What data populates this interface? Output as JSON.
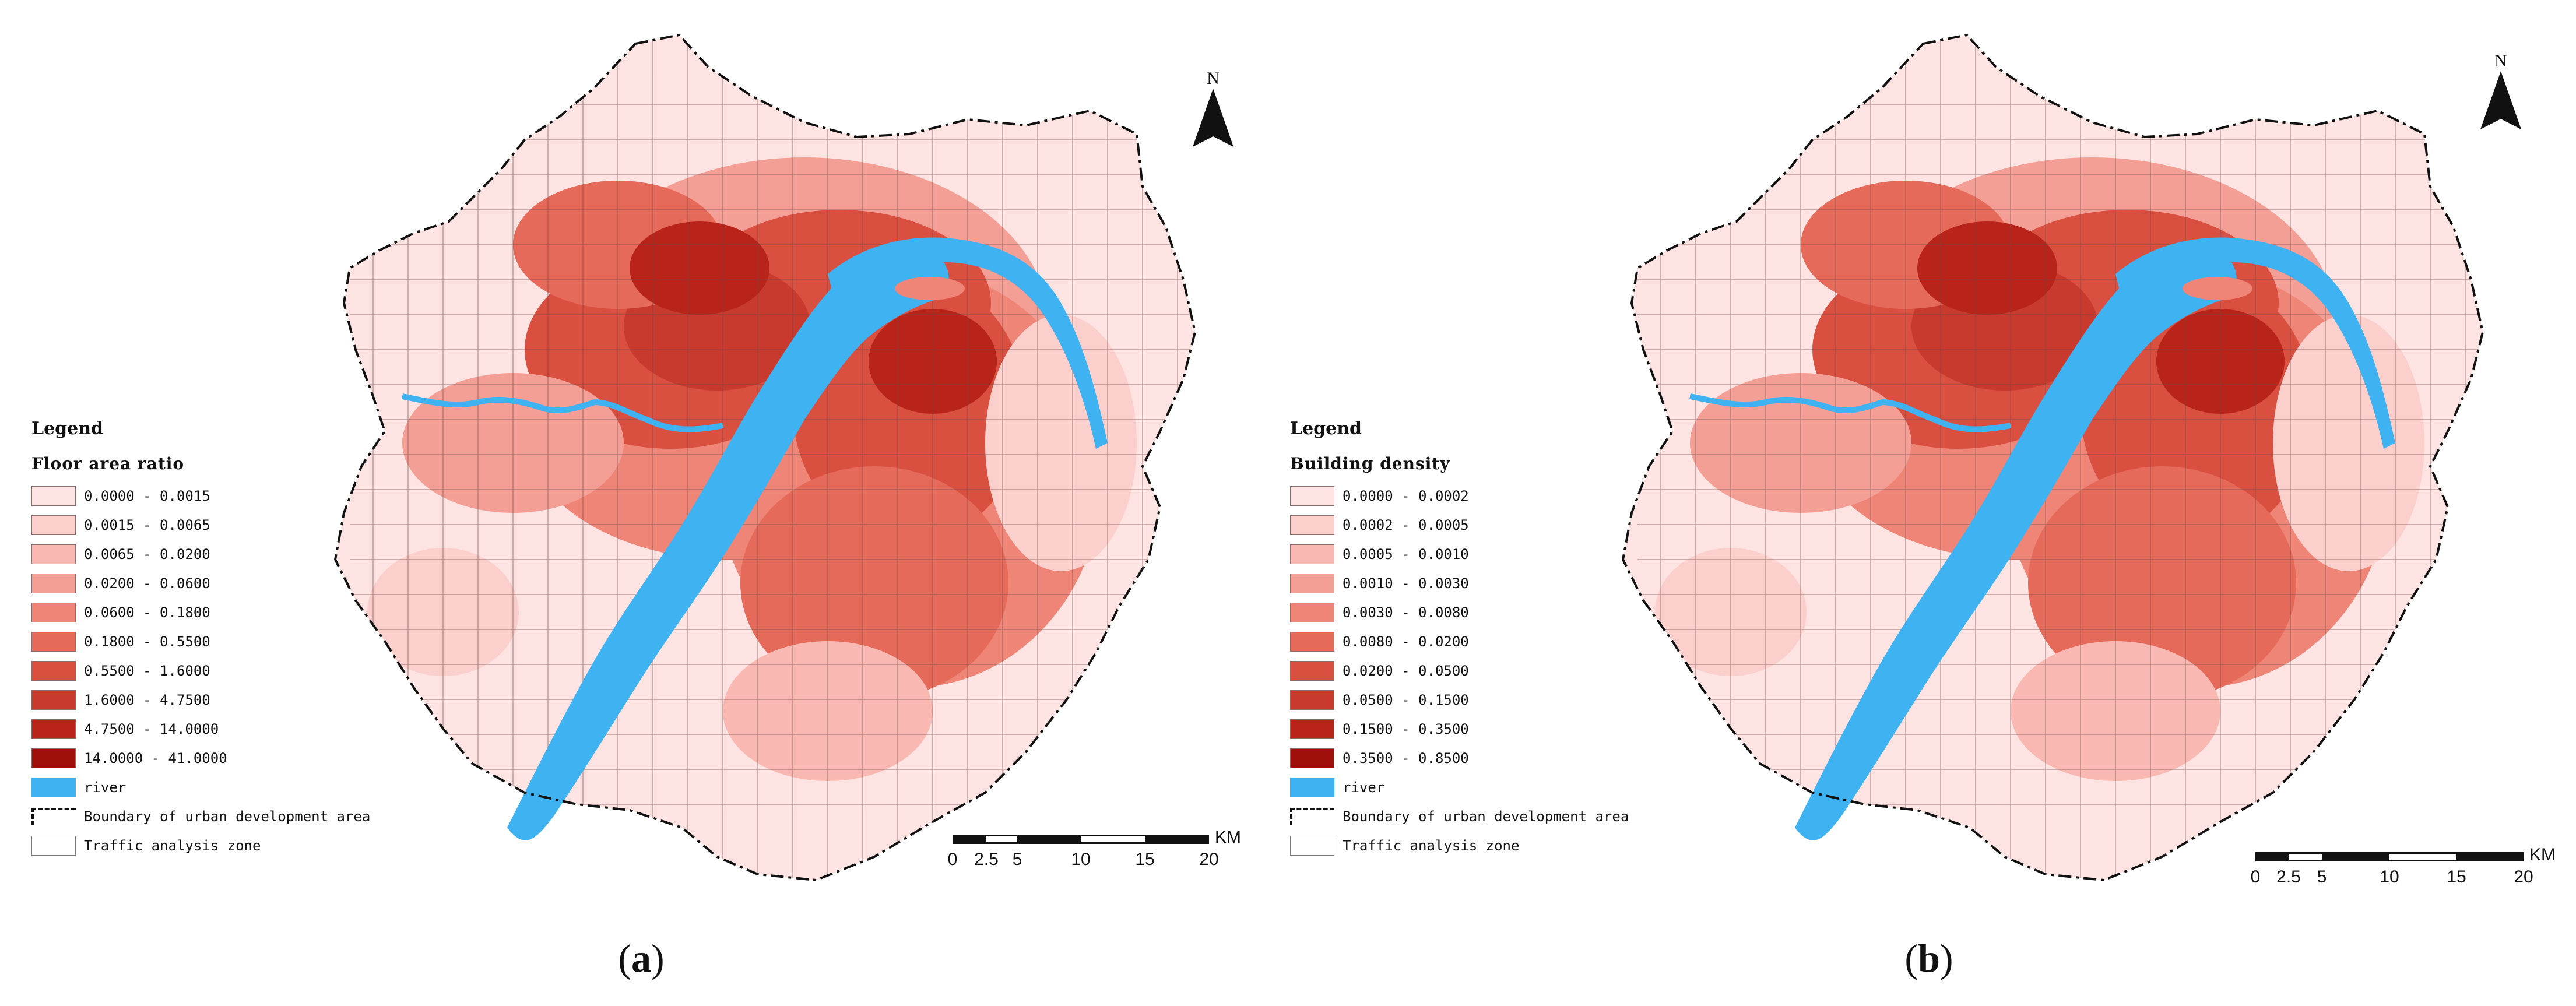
{
  "figure": {
    "colors": {
      "class_1": "#fde3e1",
      "class_2": "#fbcfcb",
      "class_3": "#f9b8b1",
      "class_4": "#f49f96",
      "class_5": "#ee8577",
      "class_6": "#e66a5a",
      "class_7": "#d94f40",
      "class_8": "#c93a2e",
      "class_9": "#b82419",
      "class_10": "#a0100a",
      "river": "#3fb2f2",
      "zone_line": "#6f4a4a"
    },
    "panels": [
      {
        "caption_open": "(",
        "caption_letter": "a",
        "caption_close": ")",
        "legend_title": "Legend",
        "legend_subtitle": "Floor area ratio",
        "classes": [
          "0.0000 - 0.0015",
          "0.0015 - 0.0065",
          "0.0065 - 0.0200",
          "0.0200 - 0.0600",
          "0.0600 - 0.1800",
          "0.1800 - 0.5500",
          "0.5500 - 1.6000",
          "1.6000 - 4.7500",
          "4.7500 - 14.0000",
          "14.0000 - 41.0000"
        ],
        "river_label": "river",
        "boundary_label": "Boundary of urban development area",
        "zone_label": "Traffic analysis zone",
        "north_label": "N",
        "scale_unit": "KM",
        "scale_ticks": [
          "0",
          "2.5",
          "5",
          "10",
          "15",
          "20"
        ]
      },
      {
        "caption_open": "(",
        "caption_letter": "b",
        "caption_close": ")",
        "legend_title": "Legend",
        "legend_subtitle": "Building density",
        "classes": [
          "0.0000 - 0.0002",
          "0.0002 - 0.0005",
          "0.0005 - 0.0010",
          "0.0010 - 0.0030",
          "0.0030 - 0.0080",
          "0.0080 - 0.0200",
          "0.0200 - 0.0500",
          "0.0500 - 0.1500",
          "0.1500 - 0.3500",
          "0.3500 - 0.8500"
        ],
        "river_label": "river",
        "boundary_label": "Boundary of urban development area",
        "zone_label": "Traffic analysis zone",
        "north_label": "N",
        "scale_unit": "KM",
        "scale_ticks": [
          "0",
          "2.5",
          "5",
          "10",
          "15",
          "20"
        ]
      }
    ]
  }
}
